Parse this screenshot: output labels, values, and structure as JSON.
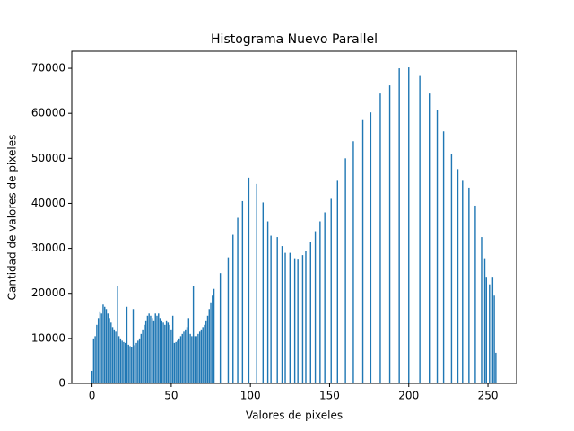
{
  "chart_data": {
    "type": "bar",
    "title": "Histograma Nuevo Parallel",
    "x_label": "Valores de pixeles",
    "y_label": "Cantidad de valores de pixeles",
    "color": "#1f77b4",
    "x": [
      0,
      1,
      2,
      3,
      4,
      5,
      6,
      7,
      8,
      9,
      10,
      11,
      12,
      13,
      14,
      15,
      16,
      17,
      18,
      19,
      20,
      21,
      22,
      23,
      24,
      25,
      26,
      27,
      28,
      29,
      30,
      31,
      32,
      33,
      34,
      35,
      36,
      37,
      38,
      39,
      40,
      41,
      42,
      43,
      44,
      45,
      46,
      47,
      48,
      49,
      50,
      51,
      52,
      53,
      54,
      55,
      56,
      57,
      58,
      59,
      60,
      61,
      62,
      63,
      64,
      65,
      66,
      67,
      68,
      69,
      70,
      71,
      72,
      73,
      74,
      75,
      76,
      77,
      78,
      79,
      80,
      81,
      82,
      83,
      84,
      85,
      86,
      87,
      88,
      89,
      90,
      91,
      92,
      93,
      94,
      95,
      96,
      97,
      98,
      99,
      100,
      101,
      102,
      103,
      104,
      105,
      106,
      107,
      108,
      109,
      110,
      111,
      112,
      113,
      114,
      115,
      116,
      117,
      118,
      119,
      120,
      121,
      122,
      123,
      124,
      125,
      126,
      127,
      128,
      129,
      130,
      131,
      132,
      133,
      134,
      135,
      136,
      137,
      138,
      139,
      140,
      141,
      142,
      143,
      144,
      145,
      146,
      147,
      148,
      149,
      150,
      151,
      152,
      153,
      154,
      155,
      156,
      157,
      158,
      159,
      160,
      161,
      162,
      163,
      164,
      165,
      166,
      167,
      168,
      169,
      170,
      171,
      172,
      173,
      174,
      175,
      176,
      177,
      178,
      179,
      180,
      181,
      182,
      183,
      184,
      185,
      186,
      187,
      188,
      189,
      190,
      191,
      192,
      193,
      194,
      195,
      196,
      197,
      198,
      199,
      200,
      201,
      202,
      203,
      204,
      205,
      206,
      207,
      208,
      209,
      210,
      211,
      212,
      213,
      214,
      215,
      216,
      217,
      218,
      219,
      220,
      221,
      222,
      223,
      224,
      225,
      226,
      227,
      228,
      229,
      230,
      231,
      232,
      233,
      234,
      235,
      236,
      237,
      238,
      239,
      240,
      241,
      242,
      243,
      244,
      245,
      246,
      247,
      248,
      249,
      250,
      251,
      252,
      253,
      254,
      255
    ],
    "values": [
      2800,
      10000,
      10500,
      13000,
      14500,
      16000,
      15500,
      17500,
      17000,
      16500,
      15500,
      14500,
      13500,
      12500,
      12000,
      11500,
      21700,
      10500,
      10000,
      9500,
      9200,
      9000,
      17000,
      8600,
      8300,
      8100,
      16500,
      8500,
      9000,
      9500,
      10000,
      11000,
      12000,
      13000,
      14000,
      15000,
      15500,
      15000,
      14500,
      14000,
      15500,
      15000,
      15500,
      14500,
      14000,
      13500,
      13000,
      14000,
      13500,
      13000,
      12000,
      15000,
      9000,
      9200,
      9500,
      10000,
      10500,
      11000,
      11500,
      12000,
      12500,
      14500,
      11000,
      10500,
      21700,
      10500,
      10500,
      11000,
      11500,
      12000,
      12500,
      13000,
      14000,
      15000,
      16500,
      18000,
      19500,
      21000,
      0,
      0,
      0,
      24500,
      0,
      0,
      0,
      0,
      28000,
      0,
      0,
      33000,
      0,
      0,
      36800,
      0,
      0,
      40500,
      0,
      0,
      0,
      45700,
      0,
      0,
      0,
      0,
      44300,
      0,
      0,
      0,
      40200,
      0,
      0,
      36000,
      0,
      32800,
      0,
      0,
      0,
      32500,
      0,
      0,
      30500,
      0,
      29000,
      0,
      0,
      29000,
      0,
      0,
      27800,
      0,
      27500,
      0,
      0,
      28500,
      0,
      29500,
      0,
      0,
      31500,
      0,
      0,
      33800,
      0,
      0,
      36000,
      0,
      0,
      38000,
      0,
      0,
      0,
      41000,
      0,
      0,
      0,
      45000,
      0,
      0,
      0,
      0,
      50000,
      0,
      0,
      0,
      0,
      53800,
      0,
      0,
      0,
      0,
      0,
      58500,
      0,
      0,
      0,
      0,
      60200,
      0,
      0,
      0,
      0,
      0,
      64400,
      0,
      0,
      0,
      0,
      0,
      66200,
      0,
      0,
      0,
      0,
      0,
      70000,
      0,
      0,
      0,
      0,
      0,
      70200,
      0,
      0,
      0,
      0,
      0,
      0,
      68300,
      0,
      0,
      0,
      0,
      0,
      64400,
      0,
      0,
      0,
      0,
      60700,
      0,
      0,
      0,
      56000,
      0,
      0,
      0,
      0,
      51000,
      0,
      0,
      0,
      47600,
      0,
      0,
      45000,
      0,
      0,
      0,
      43500,
      0,
      0,
      0,
      39500,
      0,
      0,
      0,
      32500,
      0,
      27800,
      23500,
      0,
      22000,
      0,
      23500,
      19500,
      6800
    ],
    "xlim": [
      -12.8,
      268.1
    ],
    "xticks": [
      0,
      50,
      100,
      150,
      200,
      250
    ],
    "ylim": [
      0,
      73800
    ],
    "yticks": [
      0,
      10000,
      20000,
      30000,
      40000,
      50000,
      60000,
      70000
    ]
  }
}
